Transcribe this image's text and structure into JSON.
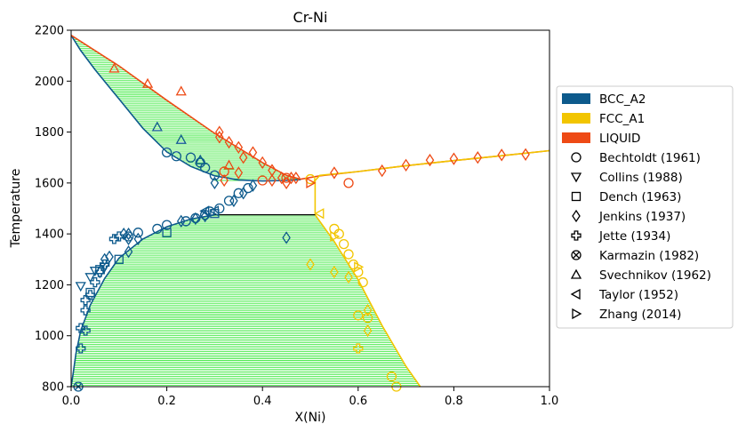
{
  "chart_data": {
    "type": "phase-diagram",
    "title": "Cr-Ni",
    "xlabel": "X(Ni)",
    "ylabel": "Temperature",
    "xlim": [
      0,
      1
    ],
    "ylim": [
      800,
      2200
    ],
    "xticks": [
      0.0,
      0.2,
      0.4,
      0.6,
      0.8,
      1.0
    ],
    "xtick_labels": [
      "0.0",
      "0.2",
      "0.4",
      "0.6",
      "0.8",
      "1.0"
    ],
    "yticks": [
      800,
      1000,
      1200,
      1400,
      1600,
      1800,
      2000,
      2200
    ],
    "ytick_labels": [
      "800",
      "1000",
      "1200",
      "1400",
      "1600",
      "1800",
      "2000",
      "2200"
    ],
    "colors": {
      "bcc": "#0d5a8c",
      "fcc": "#f2c500",
      "liquid": "#ee4a15",
      "tie": "#39e83a",
      "eutectic": "#000000"
    },
    "eutectic_line": {
      "x": [
        0.3,
        0.51
      ],
      "y": 1475
    },
    "phase_boundaries": [
      {
        "name": "BCC_A2",
        "kind": "bcc_liquidus",
        "color": "#0d5a8c",
        "points": [
          [
            0.0,
            2180
          ],
          [
            0.02,
            2120
          ],
          [
            0.05,
            2045
          ],
          [
            0.1,
            1930
          ],
          [
            0.15,
            1815
          ],
          [
            0.2,
            1722
          ],
          [
            0.25,
            1665
          ],
          [
            0.3,
            1628
          ],
          [
            0.35,
            1612
          ],
          [
            0.4,
            1608
          ],
          [
            0.45,
            1610
          ],
          [
            0.48,
            1613
          ]
        ]
      },
      {
        "name": "BCC_A2",
        "kind": "bcc_solvus",
        "color": "#0d5a8c",
        "points": [
          [
            0.0,
            800
          ],
          [
            0.004,
            850
          ],
          [
            0.01,
            930
          ],
          [
            0.02,
            1020
          ],
          [
            0.04,
            1120
          ],
          [
            0.07,
            1225
          ],
          [
            0.1,
            1305
          ],
          [
            0.15,
            1380
          ],
          [
            0.2,
            1428
          ],
          [
            0.25,
            1458
          ],
          [
            0.3,
            1475
          ]
        ]
      },
      {
        "name": "LIQUID",
        "kind": "liquidus",
        "color": "#ee4a15",
        "points": [
          [
            0.0,
            2180
          ],
          [
            0.1,
            2060
          ],
          [
            0.2,
            1925
          ],
          [
            0.3,
            1795
          ],
          [
            0.4,
            1680
          ],
          [
            0.45,
            1630
          ],
          [
            0.48,
            1615
          ],
          [
            0.52,
            1628
          ],
          [
            0.6,
            1645
          ],
          [
            0.7,
            1668
          ],
          [
            0.8,
            1688
          ],
          [
            0.9,
            1707
          ],
          [
            1.0,
            1727
          ]
        ]
      },
      {
        "name": "FCC_A1",
        "kind": "fcc_solvus",
        "color": "#f2c500",
        "points": [
          [
            0.51,
            1610
          ],
          [
            0.51,
            1475
          ],
          [
            0.55,
            1370
          ],
          [
            0.6,
            1220
          ],
          [
            0.65,
            1040
          ],
          [
            0.7,
            880
          ],
          [
            0.73,
            800
          ]
        ]
      },
      {
        "name": "FCC_A1",
        "kind": "fcc_solidus",
        "color": "#f2c500",
        "points": [
          [
            0.51,
            1610
          ],
          [
            0.52,
            1630
          ],
          [
            0.6,
            1645
          ],
          [
            0.7,
            1668
          ],
          [
            0.8,
            1688
          ],
          [
            0.9,
            1707
          ],
          [
            1.0,
            1727
          ]
        ]
      }
    ],
    "series": [
      {
        "name": "Bechtoldt (1961)",
        "marker": "circle",
        "points": [
          [
            0.12,
            1390
          ],
          [
            0.14,
            1405
          ],
          [
            0.18,
            1420
          ],
          [
            0.2,
            1435
          ],
          [
            0.24,
            1450
          ],
          [
            0.26,
            1462
          ],
          [
            0.28,
            1475
          ],
          [
            0.29,
            1488
          ],
          [
            0.31,
            1500
          ],
          [
            0.33,
            1530
          ],
          [
            0.35,
            1560
          ],
          [
            0.37,
            1580
          ],
          [
            0.4,
            1610
          ],
          [
            0.3,
            1630
          ],
          [
            0.32,
            1645
          ],
          [
            0.28,
            1660
          ],
          [
            0.25,
            1700
          ],
          [
            0.22,
            1705
          ],
          [
            0.2,
            1720
          ],
          [
            0.27,
            1680
          ],
          [
            0.45,
            1620
          ],
          [
            0.5,
            1615
          ],
          [
            0.58,
            1600
          ],
          [
            0.55,
            1420
          ],
          [
            0.56,
            1400
          ],
          [
            0.57,
            1360
          ],
          [
            0.58,
            1320
          ],
          [
            0.59,
            1280
          ],
          [
            0.6,
            1250
          ],
          [
            0.61,
            1210
          ],
          [
            0.6,
            1080
          ],
          [
            0.62,
            1070
          ],
          [
            0.67,
            840
          ],
          [
            0.68,
            800
          ]
        ]
      },
      {
        "name": "Collins (1988)",
        "marker": "triangle-down",
        "points": [
          [
            0.04,
            1230
          ],
          [
            0.05,
            1255
          ],
          [
            0.07,
            1270
          ],
          [
            0.02,
            1195
          ]
        ]
      },
      {
        "name": "Dench (1963)",
        "marker": "square",
        "points": [
          [
            0.04,
            1170
          ],
          [
            0.06,
            1260
          ],
          [
            0.1,
            1300
          ],
          [
            0.2,
            1405
          ],
          [
            0.3,
            1480
          ]
        ]
      },
      {
        "name": "Jenkins (1937)",
        "marker": "diamond",
        "points": [
          [
            0.3,
            1600
          ],
          [
            0.32,
            1610
          ],
          [
            0.35,
            1640
          ],
          [
            0.36,
            1700
          ],
          [
            0.38,
            1720
          ],
          [
            0.4,
            1680
          ],
          [
            0.42,
            1650
          ],
          [
            0.44,
            1620
          ],
          [
            0.45,
            1600
          ],
          [
            0.46,
            1620
          ],
          [
            0.47,
            1620
          ],
          [
            0.42,
            1610
          ],
          [
            0.31,
            1800
          ],
          [
            0.31,
            1780
          ],
          [
            0.33,
            1760
          ],
          [
            0.35,
            1740
          ],
          [
            0.55,
            1640
          ],
          [
            0.65,
            1648
          ],
          [
            0.7,
            1670
          ],
          [
            0.75,
            1690
          ],
          [
            0.8,
            1695
          ],
          [
            0.85,
            1700
          ],
          [
            0.9,
            1710
          ],
          [
            0.95,
            1712
          ],
          [
            0.12,
            1380
          ],
          [
            0.14,
            1380
          ],
          [
            0.07,
            1300
          ],
          [
            0.08,
            1310
          ],
          [
            0.11,
            1400
          ],
          [
            0.12,
            1400
          ],
          [
            0.06,
            1250
          ],
          [
            0.12,
            1330
          ],
          [
            0.23,
            1450
          ],
          [
            0.26,
            1460
          ],
          [
            0.28,
            1470
          ],
          [
            0.34,
            1530
          ],
          [
            0.36,
            1560
          ],
          [
            0.38,
            1590
          ],
          [
            0.45,
            1385
          ],
          [
            0.5,
            1280
          ],
          [
            0.55,
            1250
          ],
          [
            0.58,
            1230
          ],
          [
            0.62,
            1100
          ],
          [
            0.62,
            1020
          ]
        ]
      },
      {
        "name": "Jette (1934)",
        "marker": "plus",
        "points": [
          [
            0.02,
            1030
          ],
          [
            0.03,
            1020
          ],
          [
            0.02,
            950
          ],
          [
            0.03,
            1100
          ],
          [
            0.03,
            1140
          ],
          [
            0.04,
            1160
          ],
          [
            0.05,
            1210
          ],
          [
            0.06,
            1250
          ],
          [
            0.07,
            1280
          ],
          [
            0.09,
            1380
          ],
          [
            0.1,
            1390
          ],
          [
            0.6,
            950
          ]
        ]
      },
      {
        "name": "Karmazin (1982)",
        "marker": "x-circle",
        "points": [
          [
            0.015,
            800
          ]
        ]
      },
      {
        "name": "Svechnikov (1962)",
        "marker": "triangle-up",
        "points": [
          [
            0.09,
            2050
          ],
          [
            0.16,
            1990
          ],
          [
            0.23,
            1960
          ],
          [
            0.18,
            1820
          ],
          [
            0.23,
            1770
          ],
          [
            0.33,
            1670
          ],
          [
            0.27,
            1690
          ]
        ]
      },
      {
        "name": "Taylor (1952)",
        "marker": "triangle-left",
        "points": [
          [
            0.28,
            1490
          ],
          [
            0.3,
            1490
          ],
          [
            0.52,
            1480
          ]
        ]
      },
      {
        "name": "Zhang (2014)",
        "marker": "triangle-right",
        "points": [
          [
            0.5,
            1600
          ],
          [
            0.55,
            1390
          ],
          [
            0.6,
            1270
          ]
        ]
      }
    ],
    "legend": {
      "position": "right",
      "phase_entries": [
        {
          "label": "BCC_A2",
          "color": "#0d5a8c"
        },
        {
          "label": "FCC_A1",
          "color": "#f2c500"
        },
        {
          "label": "LIQUID",
          "color": "#ee4a15"
        }
      ],
      "marker_entries": [
        {
          "label": "Bechtoldt (1961)",
          "marker": "circle"
        },
        {
          "label": "Collins (1988)",
          "marker": "triangle-down"
        },
        {
          "label": "Dench (1963)",
          "marker": "square"
        },
        {
          "label": "Jenkins (1937)",
          "marker": "diamond"
        },
        {
          "label": "Jette (1934)",
          "marker": "plus"
        },
        {
          "label": "Karmazin (1982)",
          "marker": "x-circle"
        },
        {
          "label": "Svechnikov (1962)",
          "marker": "triangle-up"
        },
        {
          "label": "Taylor (1952)",
          "marker": "triangle-left"
        },
        {
          "label": "Zhang (2014)",
          "marker": "triangle-right"
        }
      ]
    }
  }
}
